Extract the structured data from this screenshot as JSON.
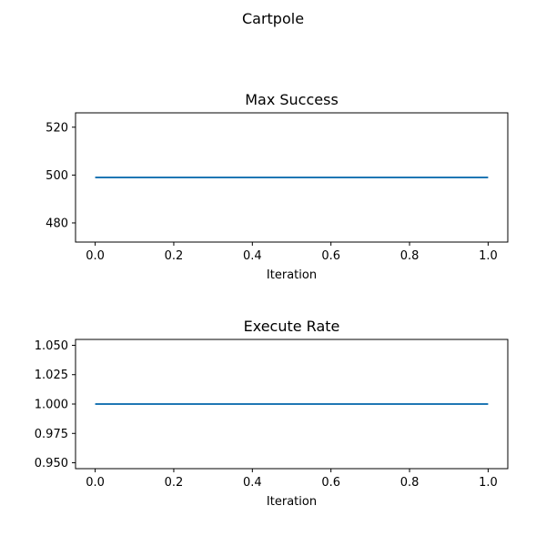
{
  "figure": {
    "suptitle": "Cartpole"
  },
  "colors": {
    "series": "#1f77b4",
    "background": "#ffffff",
    "axes": "#000000"
  },
  "chart_data": [
    {
      "type": "line",
      "title": "Max Success",
      "xlabel": "Iteration",
      "ylabel": "",
      "xlim": [
        -0.05,
        1.05
      ],
      "ylim": [
        472,
        526
      ],
      "xticks": [
        0.0,
        0.2,
        0.4,
        0.6,
        0.8,
        1.0
      ],
      "xtick_labels": [
        "0.0",
        "0.2",
        "0.4",
        "0.6",
        "0.8",
        "1.0"
      ],
      "yticks": [
        480,
        500,
        520
      ],
      "ytick_labels": [
        "480",
        "500",
        "520"
      ],
      "grid": false,
      "legend": false,
      "series": [
        {
          "x": [
            0.0,
            1.0
          ],
          "y": [
            499,
            499
          ]
        }
      ]
    },
    {
      "type": "line",
      "title": "Execute Rate",
      "xlabel": "Iteration",
      "ylabel": "",
      "xlim": [
        -0.05,
        1.05
      ],
      "ylim": [
        0.945,
        1.055
      ],
      "xticks": [
        0.0,
        0.2,
        0.4,
        0.6,
        0.8,
        1.0
      ],
      "xtick_labels": [
        "0.0",
        "0.2",
        "0.4",
        "0.6",
        "0.8",
        "1.0"
      ],
      "yticks": [
        0.95,
        0.975,
        1.0,
        1.025,
        1.05
      ],
      "ytick_labels": [
        "0.950",
        "0.975",
        "1.000",
        "1.025",
        "1.050"
      ],
      "grid": false,
      "legend": false,
      "series": [
        {
          "x": [
            0.0,
            1.0
          ],
          "y": [
            1.0,
            1.0
          ]
        }
      ]
    }
  ]
}
